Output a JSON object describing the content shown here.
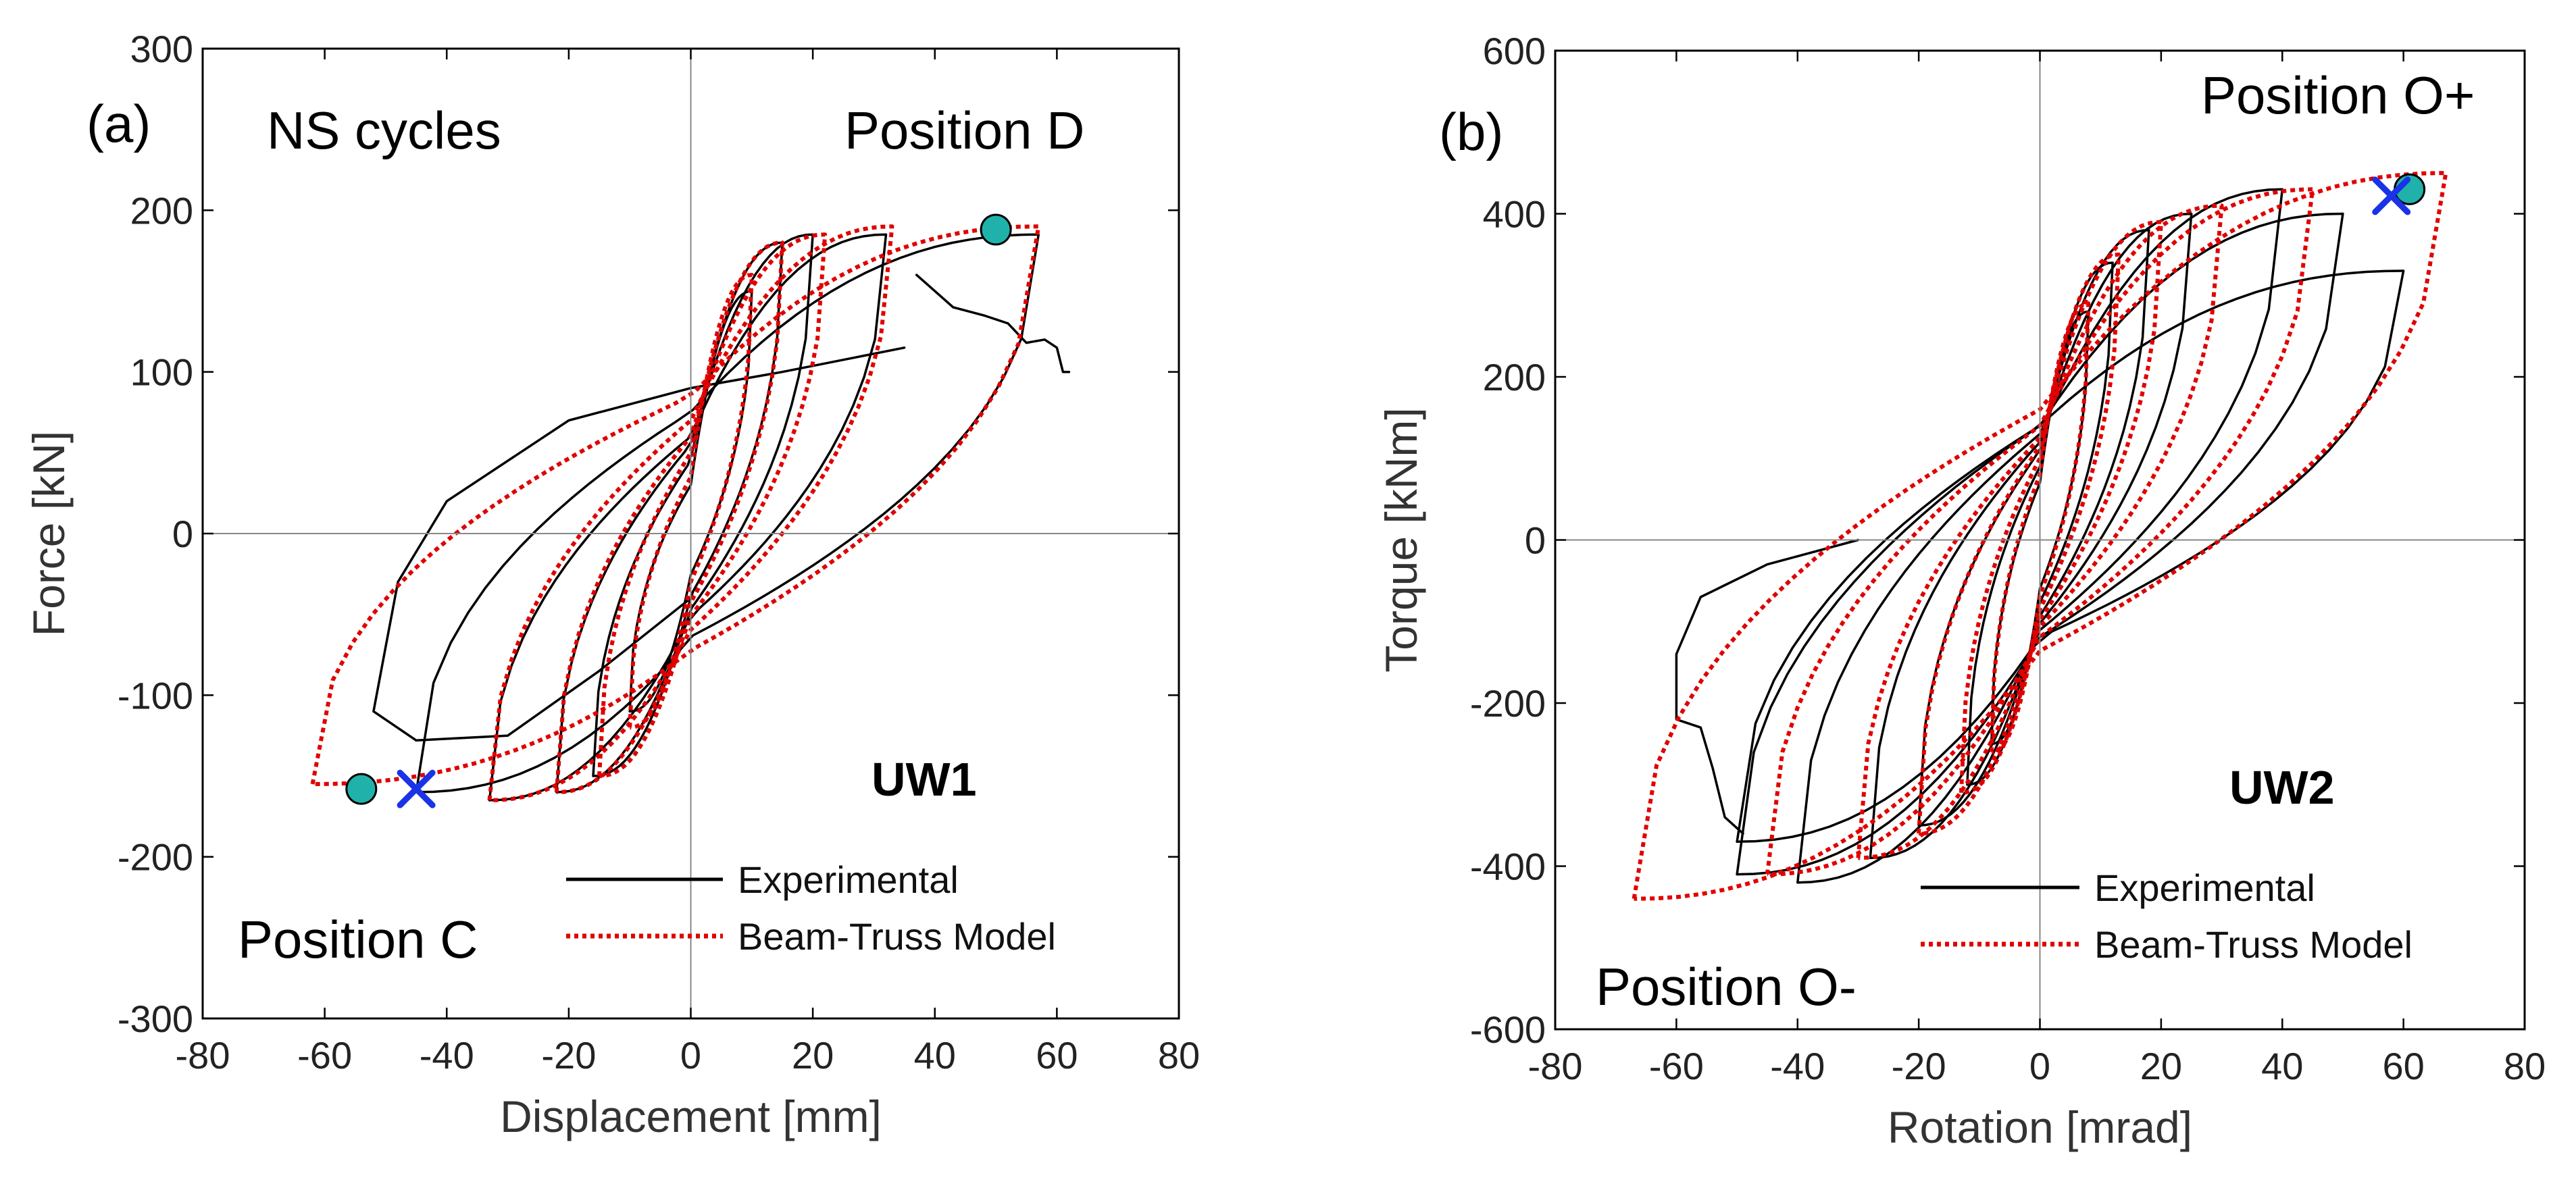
{
  "chart_data": [
    {
      "type": "line",
      "panel_label": "(a)",
      "xlabel": "Displacement [mm]",
      "ylabel": "Force [kN]",
      "xlim": [
        -80,
        80
      ],
      "ylim": [
        -300,
        300
      ],
      "xticks": [
        -80,
        -60,
        -40,
        -20,
        0,
        20,
        40,
        60,
        80
      ],
      "yticks": [
        -300,
        -200,
        -100,
        0,
        100,
        200,
        300
      ],
      "annotations": [
        "NS cycles",
        "Position D",
        "Position C",
        "UW1"
      ],
      "legend": {
        "position": "bottom-right",
        "entries": [
          "Experimental",
          "Beam-Truss Model"
        ]
      },
      "series": [
        {
          "name": "Experimental",
          "color": "#000000",
          "style": "solid",
          "loops": [
            {
              "amp_pos": 10,
              "amp_neg": -10,
              "peak_pos": 150,
              "peak_neg": -110,
              "intercept": 30,
              "w": 3
            },
            {
              "amp_pos": 15,
              "amp_neg": -16,
              "peak_pos": 180,
              "peak_neg": -150,
              "intercept": 45,
              "w": 6
            },
            {
              "amp_pos": 20,
              "amp_neg": -22,
              "peak_pos": 185,
              "peak_neg": -160,
              "intercept": 55,
              "w": 10
            },
            {
              "amp_pos": 32,
              "amp_neg": -33,
              "peak_pos": 185,
              "peak_neg": -165,
              "intercept": 60,
              "w": 18
            },
            {
              "amp_pos": 57,
              "amp_neg": -45,
              "peak_pos": 185,
              "peak_neg": -160,
              "intercept": 75,
              "w": 28
            }
          ],
          "trail": [
            [
              37,
              160
            ],
            [
              43,
              140
            ],
            [
              48,
              135
            ],
            [
              52,
              130
            ],
            [
              55,
              118
            ],
            [
              58,
              120
            ],
            [
              60,
              115
            ],
            [
              61,
              100
            ],
            [
              62,
              100
            ]
          ],
          "final_negative": [
            [
              35,
              115
            ],
            [
              15,
              100
            ],
            [
              0,
              90
            ],
            [
              -20,
              70
            ],
            [
              -40,
              20
            ],
            [
              -48,
              -30
            ],
            [
              -50,
              -70
            ],
            [
              -52,
              -110
            ],
            [
              -45,
              -128
            ],
            [
              -30,
              -125
            ],
            [
              -15,
              -85
            ],
            [
              0,
              -40
            ]
          ]
        },
        {
          "name": "Beam-Truss Model",
          "color": "#e00000",
          "style": "dotted",
          "loops": [
            {
              "amp_pos": 10,
              "amp_neg": -10,
              "peak_pos": 160,
              "peak_neg": -120,
              "intercept": 35,
              "w": 3
            },
            {
              "amp_pos": 15,
              "amp_neg": -15,
              "peak_pos": 180,
              "peak_neg": -150,
              "intercept": 50,
              "w": 6
            },
            {
              "amp_pos": 22,
              "amp_neg": -22,
              "peak_pos": 185,
              "peak_neg": -160,
              "intercept": 60,
              "w": 11
            },
            {
              "amp_pos": 33,
              "amp_neg": -33,
              "peak_pos": 190,
              "peak_neg": -165,
              "intercept": 70,
              "w": 19
            },
            {
              "amp_pos": 57,
              "amp_neg": -62,
              "peak_pos": 190,
              "peak_neg": -155,
              "intercept": 85,
              "w": 30
            }
          ]
        }
      ],
      "markers": [
        {
          "name": "Position D",
          "x": 50,
          "y": 188,
          "shape": "circle",
          "color": "#20b2aa"
        },
        {
          "name": "Position C",
          "x": -54,
          "y": -158,
          "shape": "circle",
          "color": "#20b2aa"
        },
        {
          "name": "Model peak C",
          "x": -45,
          "y": -158,
          "shape": "cross",
          "color": "#1a33e6"
        }
      ]
    },
    {
      "type": "line",
      "panel_label": "(b)",
      "xlabel": "Rotation [mrad]",
      "ylabel": "Torque [kNm]",
      "xlim": [
        -80,
        80
      ],
      "ylim": [
        -600,
        600
      ],
      "xticks": [
        -80,
        -60,
        -40,
        -20,
        0,
        20,
        40,
        60,
        80
      ],
      "yticks": [
        -600,
        -400,
        -200,
        0,
        200,
        400,
        600
      ],
      "annotations": [
        "Position O+",
        "Position O-",
        "UW2"
      ],
      "legend": {
        "position": "bottom-right",
        "entries": [
          "Experimental",
          "Beam-Truss Model"
        ]
      },
      "series": [
        {
          "name": "Experimental",
          "color": "#000000",
          "style": "solid",
          "loops": [
            {
              "amp_pos": 8,
              "amp_neg": -8,
              "peak_pos": 280,
              "peak_neg": -250,
              "intercept": 70,
              "w": 3
            },
            {
              "amp_pos": 12,
              "amp_neg": -12,
              "peak_pos": 340,
              "peak_neg": -300,
              "intercept": 90,
              "w": 5
            },
            {
              "amp_pos": 18,
              "amp_neg": -20,
              "peak_pos": 380,
              "peak_neg": -350,
              "intercept": 110,
              "w": 9
            },
            {
              "amp_pos": 25,
              "amp_neg": -28,
              "peak_pos": 400,
              "peak_neg": -390,
              "intercept": 120,
              "w": 13
            },
            {
              "amp_pos": 40,
              "amp_neg": -40,
              "peak_pos": 430,
              "peak_neg": -420,
              "intercept": 130,
              "w": 20
            },
            {
              "amp_pos": 50,
              "amp_neg": -50,
              "peak_pos": 400,
              "peak_neg": -410,
              "intercept": 140,
              "w": 26
            },
            {
              "amp_pos": 60,
              "amp_neg": -50,
              "peak_pos": 330,
              "peak_neg": -370,
              "intercept": 140,
              "w": 30
            }
          ],
          "final_negative": [
            [
              -30,
              0
            ],
            [
              -45,
              -30
            ],
            [
              -56,
              -70
            ],
            [
              -60,
              -140
            ],
            [
              -60,
              -220
            ],
            [
              -56,
              -230
            ],
            [
              -54,
              -280
            ],
            [
              -52,
              -340
            ],
            [
              -49,
              -360
            ]
          ]
        },
        {
          "name": "Beam-Truss Model",
          "color": "#e00000",
          "style": "dotted",
          "loops": [
            {
              "amp_pos": 8,
              "amp_neg": -8,
              "peak_pos": 290,
              "peak_neg": -260,
              "intercept": 80,
              "w": 3
            },
            {
              "amp_pos": 13,
              "amp_neg": -13,
              "peak_pos": 350,
              "peak_neg": -310,
              "intercept": 100,
              "w": 6
            },
            {
              "amp_pos": 20,
              "amp_neg": -20,
              "peak_pos": 390,
              "peak_neg": -360,
              "intercept": 115,
              "w": 10
            },
            {
              "amp_pos": 30,
              "amp_neg": -30,
              "peak_pos": 410,
              "peak_neg": -390,
              "intercept": 125,
              "w": 15
            },
            {
              "amp_pos": 45,
              "amp_neg": -45,
              "peak_pos": 430,
              "peak_neg": -410,
              "intercept": 140,
              "w": 23
            },
            {
              "amp_pos": 67,
              "amp_neg": -67,
              "peak_pos": 450,
              "peak_neg": -440,
              "intercept": 160,
              "w": 36
            }
          ]
        }
      ],
      "markers": [
        {
          "name": "Position O+",
          "x": 61,
          "y": 430,
          "shape": "circle",
          "color": "#20b2aa"
        },
        {
          "name": "Model peak O+",
          "x": 58,
          "y": 422,
          "shape": "cross",
          "color": "#1a33e6"
        }
      ]
    }
  ]
}
